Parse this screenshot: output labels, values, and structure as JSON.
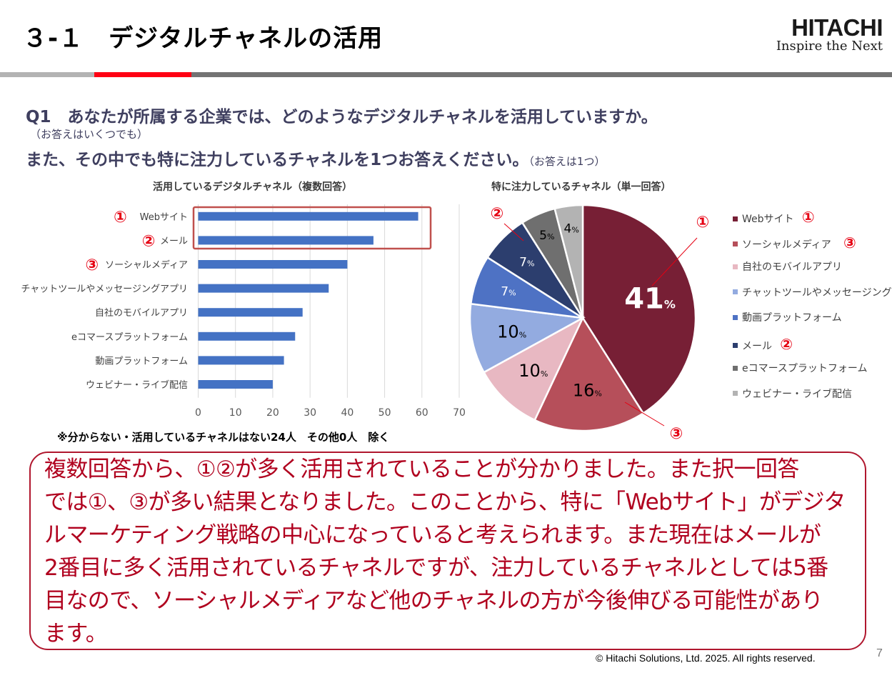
{
  "header": {
    "title": "３-１　デジタルチャネルの活用",
    "logo_brand": "HITACHI",
    "logo_tagline": "Inspire the Next"
  },
  "colors": {
    "rule_gray_light": "#b3b3b3",
    "rule_red": "#ff0013",
    "rule_gray_dark": "#737373",
    "bar_color": "#4472c4",
    "highlight_box": "#c0504d",
    "marker_red": "#e60012",
    "conclusion_text": "#b0001e"
  },
  "question": {
    "line1": "Q1　あなたが所属する企業では、どのようなデジタルチャネルを活用していますか。",
    "note1": "（お答えはいくつでも）",
    "line2": "また、その中でも特に注力しているチャネルを1つお答えください。",
    "note2": "（お答えは1つ）"
  },
  "chart_data": [
    {
      "type": "bar",
      "orientation": "horizontal",
      "title": "活用しているデジタルチャネル（複数回答）",
      "categories": [
        "Webサイト",
        "メール",
        "ソーシャルメディア",
        "チャットツールやメッセージングアプリ",
        "自社のモバイルアプリ",
        "eコマースプラットフォーム",
        "動画プラットフォーム",
        "ウェビナー・ライブ配信"
      ],
      "values": [
        59,
        47,
        40,
        35,
        28,
        26,
        23,
        20
      ],
      "markers": [
        "①",
        "②",
        "③",
        "",
        "",
        "",
        "",
        ""
      ],
      "xlim": [
        0,
        70
      ],
      "xticks": [
        "0",
        "10",
        "20",
        "30",
        "40",
        "50",
        "60",
        "70"
      ],
      "grid": true,
      "highlight": "top-2 categories boxed"
    },
    {
      "type": "pie",
      "title": "特に注力しているチャネル（単一回答）",
      "categories": [
        "Webサイト",
        "ソーシャルメディア",
        "自社のモバイルアプリ",
        "チャットツールやメッセージングアプリ",
        "動画プラットフォーム",
        "メール",
        "eコマースプラットフォーム",
        "ウェビナー・ライブ配信"
      ],
      "values": [
        41,
        16,
        10,
        10,
        7,
        7,
        5,
        4
      ],
      "labels": [
        "41",
        "16",
        "10",
        "10",
        "7",
        "7",
        "5",
        "4"
      ],
      "unit": "%",
      "colors": [
        "#771f35",
        "#b64f5a",
        "#e8b8c2",
        "#93abe0",
        "#4e72c4",
        "#2c3e6e",
        "#6f6f6f",
        "#b3b3b3"
      ],
      "label_colors": [
        "#ffffff",
        "#000000",
        "#000000",
        "#000000",
        "#ffffff",
        "#ffffff",
        "#000000",
        "#000000"
      ],
      "callouts": [
        {
          "category": "Webサイト",
          "marker": "①"
        },
        {
          "category": "ソーシャルメディア",
          "marker": "③"
        },
        {
          "category": "メール",
          "marker": "②"
        }
      ],
      "legend": {
        "position": "right",
        "items": [
          "Webサイト",
          "ソーシャルメディア",
          "自社のモバイルアプリ",
          "チャットツールやメッセージングアプリ",
          "動画プラットフォーム",
          "メール",
          "eコマースプラットフォーム",
          "ウェビナー・ライブ配信"
        ],
        "markers": [
          "①",
          "③",
          "",
          "",
          "",
          "②",
          "",
          ""
        ]
      }
    }
  ],
  "footnote": "※分からない・活用しているチャネルはない24人　その他0人　除く",
  "conclusion": {
    "lines": [
      "複数回答から、①②が多く活用されていることが分かりました。また択一回答",
      "では①、③が多い結果となりました。このことから、特に「Webサイト」がデジタ",
      "ルマーケティング戦略の中心になっていると考えられます。また現在はメールが",
      "2番目に多く活用されているチャネルですが、注力しているチャネルとしては5番",
      "目なので、ソーシャルメディアなど他のチャネルの方が今後伸びる可能性があり",
      "ます。"
    ]
  },
  "footer": {
    "copyright": "© Hitachi Solutions, Ltd. 2025. All rights reserved.",
    "page_number": "7"
  }
}
